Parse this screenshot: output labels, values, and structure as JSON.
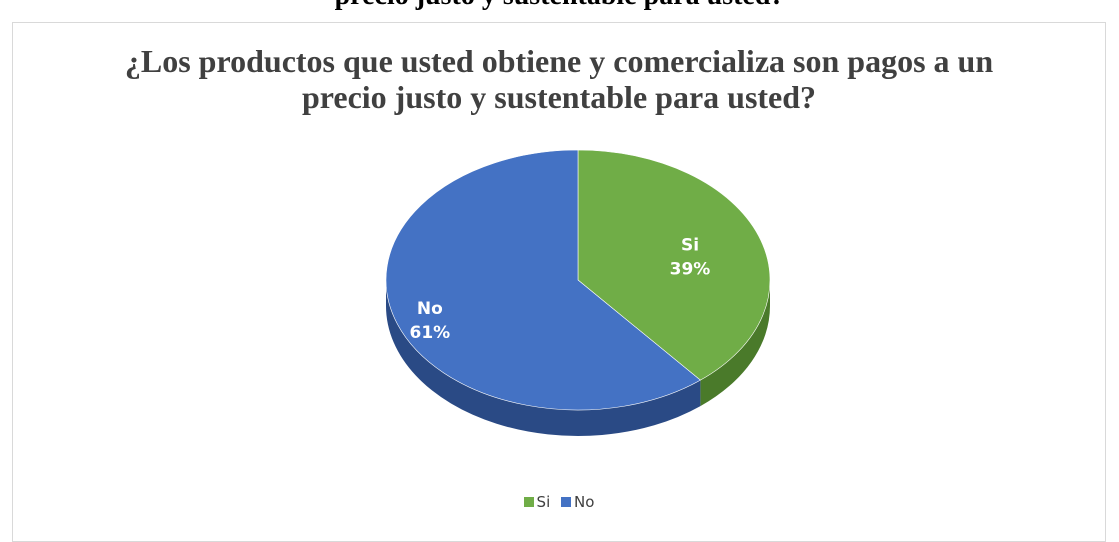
{
  "doc": {
    "cut_text": "precio justo y sustentable para usted?"
  },
  "chart_data": {
    "type": "pie",
    "style": "3d",
    "title_lines": [
      "¿Los productos que usted obtiene y comercializa son pagos a un",
      "precio justo y sustentable para usted?"
    ],
    "categories": [
      "Si",
      "No"
    ],
    "values": [
      39,
      61
    ],
    "value_labels": [
      "39%",
      "61%"
    ],
    "colors": [
      "#70ad47",
      "#4472c4"
    ],
    "side_colors": [
      "#4a7a2a",
      "#2a4a85"
    ],
    "legend": {
      "placement": "bottom",
      "entries": [
        "Si",
        "No"
      ]
    }
  }
}
